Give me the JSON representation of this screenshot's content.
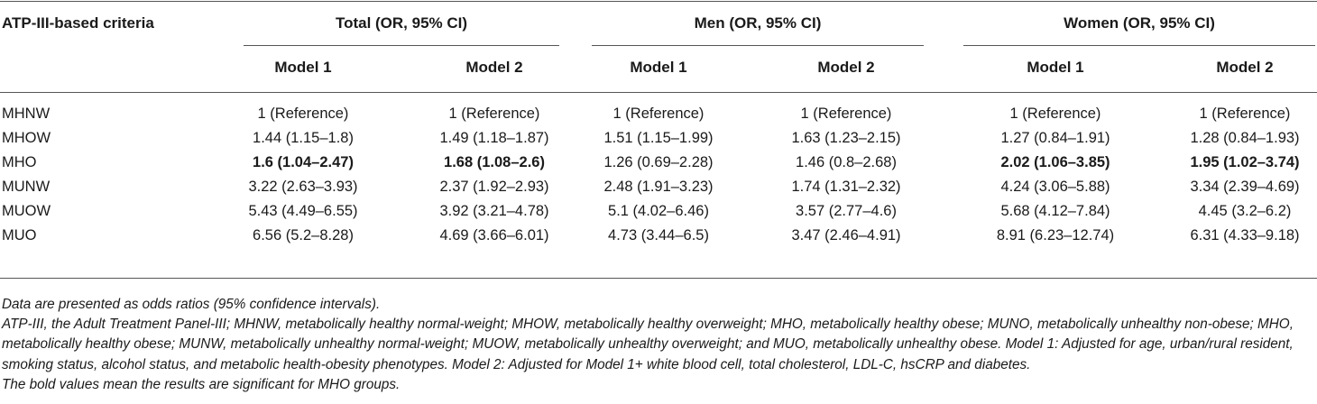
{
  "table": {
    "corner_header": "ATP-III-based criteria",
    "groups": [
      {
        "label": "Total (OR, 95% CI)",
        "models": [
          "Model 1",
          "Model 2"
        ]
      },
      {
        "label": "Men (OR, 95% CI)",
        "models": [
          "Model 1",
          "Model 2"
        ]
      },
      {
        "label": "Women (OR, 95% CI)",
        "models": [
          "Model 1",
          "Model 2"
        ]
      }
    ],
    "rows": [
      {
        "label": "MHNW",
        "cells": [
          "1 (Reference)",
          "1 (Reference)",
          "1 (Reference)",
          "1 (Reference)",
          "1 (Reference)",
          "1 (Reference)"
        ],
        "bold": [
          false,
          false,
          false,
          false,
          false,
          false
        ]
      },
      {
        "label": "MHOW",
        "cells": [
          "1.44 (1.15–1.8)",
          "1.49 (1.18–1.87)",
          "1.51 (1.15–1.99)",
          "1.63 (1.23–2.15)",
          "1.27 (0.84–1.91)",
          "1.28 (0.84–1.93)"
        ],
        "bold": [
          false,
          false,
          false,
          false,
          false,
          false
        ]
      },
      {
        "label": "MHO",
        "cells": [
          "1.6 (1.04–2.47)",
          "1.68 (1.08–2.6)",
          "1.26 (0.69–2.28)",
          "1.46 (0.8–2.68)",
          "2.02 (1.06–3.85)",
          "1.95 (1.02–3.74)"
        ],
        "bold": [
          true,
          true,
          false,
          false,
          true,
          true
        ]
      },
      {
        "label": "MUNW",
        "cells": [
          "3.22 (2.63–3.93)",
          "2.37 (1.92–2.93)",
          "2.48 (1.91–3.23)",
          "1.74 (1.31–2.32)",
          "4.24 (3.06–5.88)",
          "3.34 (2.39–4.69)"
        ],
        "bold": [
          false,
          false,
          false,
          false,
          false,
          false
        ]
      },
      {
        "label": "MUOW",
        "cells": [
          "5.43 (4.49–6.55)",
          "3.92 (3.21–4.78)",
          "5.1 (4.02–6.46)",
          "3.57 (2.77–4.6)",
          "5.68 (4.12–7.84)",
          "4.45 (3.2–6.2)"
        ],
        "bold": [
          false,
          false,
          false,
          false,
          false,
          false
        ]
      },
      {
        "label": "MUO",
        "cells": [
          "6.56 (5.2–8.28)",
          "4.69 (3.66–6.01)",
          "4.73 (3.44–6.5)",
          "3.47 (2.46–4.91)",
          "8.91 (6.23–12.74)",
          "6.31 (4.33–9.18)"
        ],
        "bold": [
          false,
          false,
          false,
          false,
          false,
          false
        ]
      }
    ]
  },
  "footnotes": [
    "Data are presented as odds ratios (95% confidence intervals).",
    "ATP-III, the Adult Treatment Panel-III; MHNW, metabolically healthy normal-weight; MHOW, metabolically healthy overweight; MHO, metabolically healthy obese; MUNO, metabolically unhealthy non-obese; MHO, metabolically healthy obese; MUNW, metabolically unhealthy normal-weight; MUOW, metabolically unhealthy overweight; and MUO, metabolically unhealthy obese. Model 1: Adjusted for age, urban/rural resident, smoking status, alcohol status, and metabolic health-obesity phenotypes. Model 2: Adjusted for Model 1+ white blood cell, total cholesterol, LDL-C, hsCRP and diabetes.",
    "The bold values mean the results are significant for MHO groups."
  ]
}
